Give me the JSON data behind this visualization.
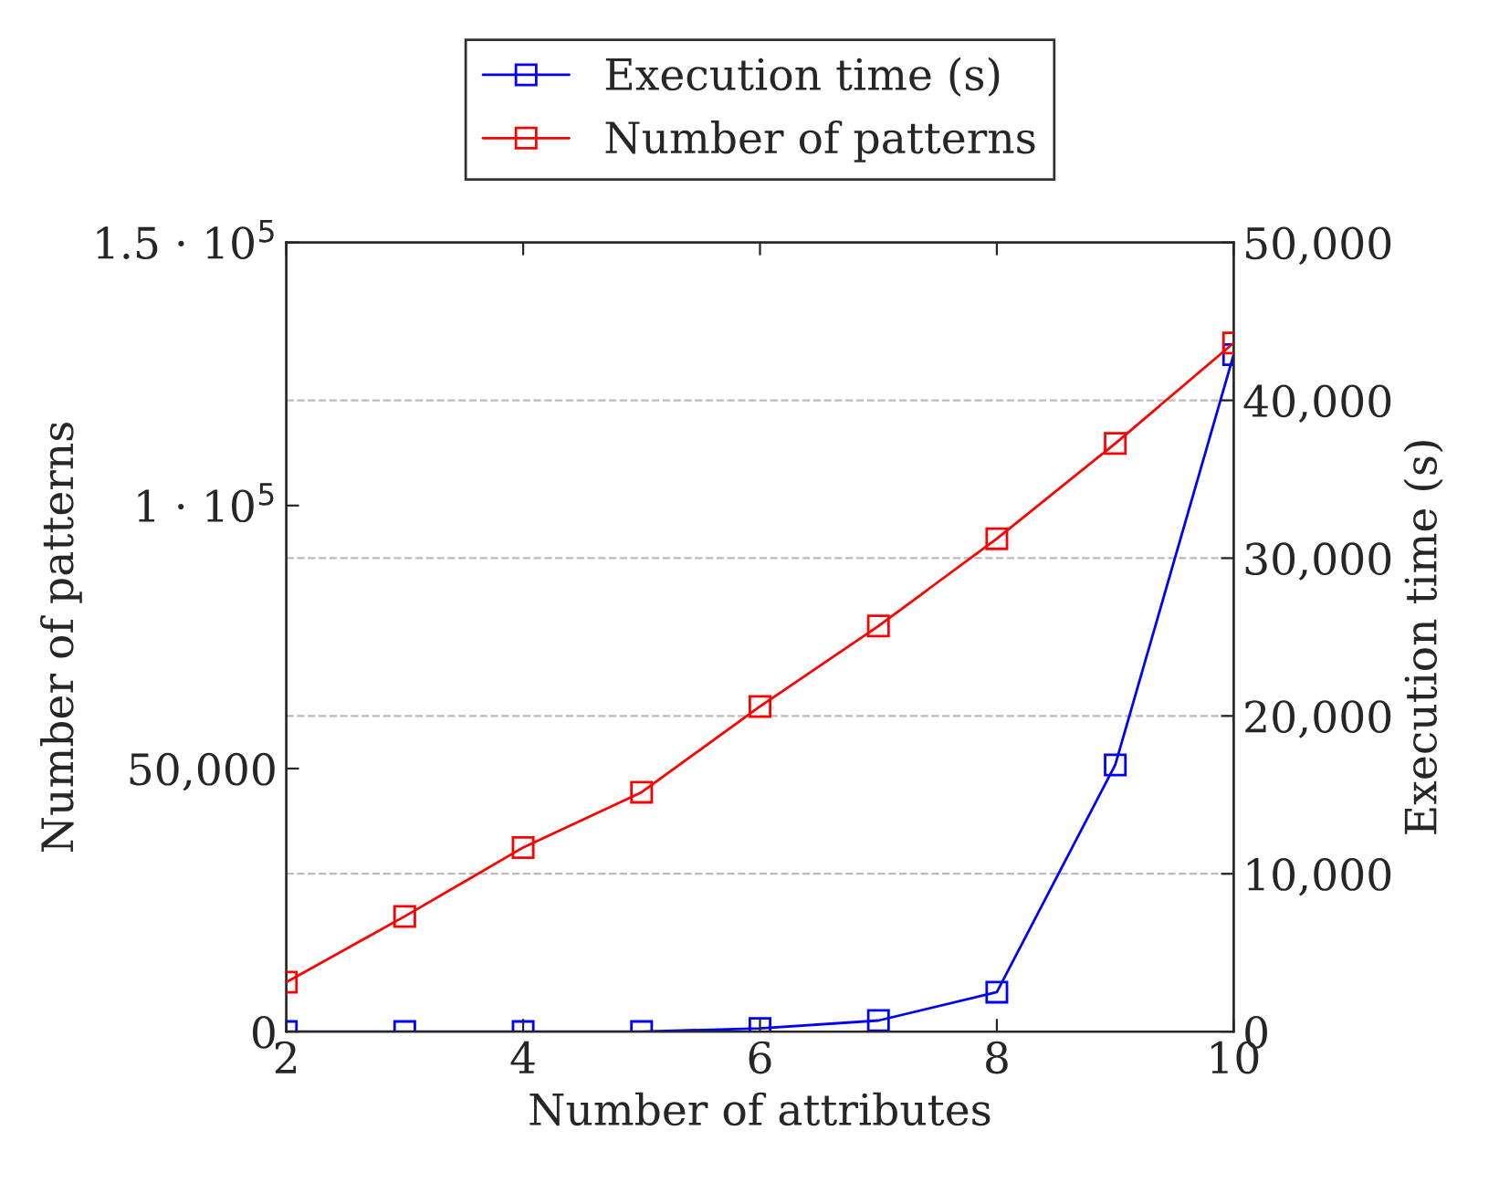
{
  "chart_data": {
    "type": "line",
    "xlabel": "Number of attributes",
    "ylabel": "Number of patterns",
    "y2label": "Execution time (s)",
    "x": [
      2,
      3,
      4,
      5,
      6,
      7,
      8,
      9,
      10
    ],
    "series": [
      {
        "name": "Execution time (s)",
        "color": "#0000ff",
        "axis": "y2",
        "values": [
          0,
          0,
          0,
          0,
          200,
          700,
          2500,
          16900,
          42900
        ]
      },
      {
        "name": "Number of patterns",
        "color": "#ff0000",
        "values": [
          9400,
          21900,
          35000,
          45500,
          61800,
          77100,
          93700,
          111800,
          130900
        ]
      }
    ],
    "xlim": [
      2,
      10
    ],
    "xticks": [
      2,
      4,
      6,
      8,
      10
    ],
    "ylim": [
      0,
      150000
    ],
    "yticks": [
      0,
      {
        "value": 50000,
        "label": "50,000"
      },
      {
        "value": 100000,
        "label": "1 · 10$^{5}$"
      },
      {
        "value": 150000,
        "label": "1.5 · 10$^{5}$"
      }
    ],
    "y2lim": [
      0,
      50000
    ],
    "y2ticks": [
      0,
      {
        "value": 10000,
        "label": "10,000"
      },
      {
        "value": 20000,
        "label": "20,000"
      },
      {
        "value": 30000,
        "label": "30,000"
      },
      {
        "value": 40000,
        "label": "40,000"
      },
      {
        "value": 50000,
        "label": "50,000"
      }
    ],
    "grid": "y",
    "legend": "top",
    "marker": "square",
    "line_style": "solid"
  }
}
